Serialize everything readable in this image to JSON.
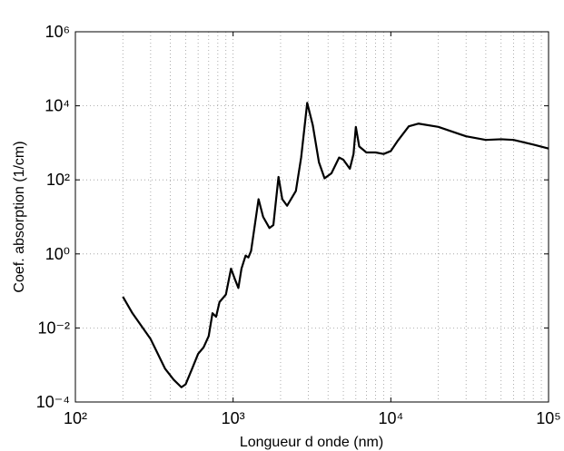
{
  "chart_data": {
    "type": "line",
    "xlabel": "Longueur d onde (nm)",
    "ylabel": "Coef. absorption (1/cm)",
    "xscale": "log",
    "yscale": "log",
    "grid": true,
    "minor_grid": true,
    "xlim": [
      100,
      100000
    ],
    "ylim": [
      0.0001,
      1000000
    ],
    "xticks": [
      {
        "value": 100,
        "label": "10²"
      },
      {
        "value": 1000,
        "label": "10³"
      },
      {
        "value": 10000,
        "label": "10⁴"
      },
      {
        "value": 100000,
        "label": "10⁵"
      }
    ],
    "yticks": [
      {
        "value": 0.0001,
        "label": "10⁻⁴"
      },
      {
        "value": 0.01,
        "label": "10⁻²"
      },
      {
        "value": 1,
        "label": "10⁰"
      },
      {
        "value": 100,
        "label": "10²"
      },
      {
        "value": 10000,
        "label": "10⁴"
      },
      {
        "value": 1000000,
        "label": "10⁶"
      }
    ],
    "series": [
      {
        "color": "#000000",
        "x": [
          200,
          230,
          300,
          370,
          420,
          470,
          500,
          550,
          600,
          650,
          700,
          740,
          780,
          820,
          900,
          970,
          1030,
          1080,
          1130,
          1200,
          1250,
          1300,
          1450,
          1550,
          1700,
          1800,
          1940,
          2050,
          2200,
          2500,
          2700,
          2950,
          3200,
          3500,
          3800,
          4200,
          4700,
          5000,
          5500,
          5800,
          6000,
          6300,
          7000,
          8000,
          9000,
          10000,
          11000,
          13000,
          15000,
          20000,
          30000,
          40000,
          50000,
          60000,
          80000,
          100000
        ],
        "values": [
          0.07,
          0.025,
          0.005,
          0.0008,
          0.0004,
          0.00025,
          0.0003,
          0.0008,
          0.002,
          0.003,
          0.006,
          0.025,
          0.02,
          0.05,
          0.08,
          0.4,
          0.2,
          0.12,
          0.4,
          0.9,
          0.8,
          1.2,
          30,
          10,
          5,
          6,
          120,
          30,
          20,
          50,
          400,
          12000,
          3000,
          300,
          110,
          150,
          400,
          350,
          200,
          500,
          2700,
          800,
          550,
          550,
          500,
          600,
          1100,
          2800,
          3300,
          2700,
          1500,
          1200,
          1250,
          1200,
          900,
          700
        ]
      }
    ]
  }
}
